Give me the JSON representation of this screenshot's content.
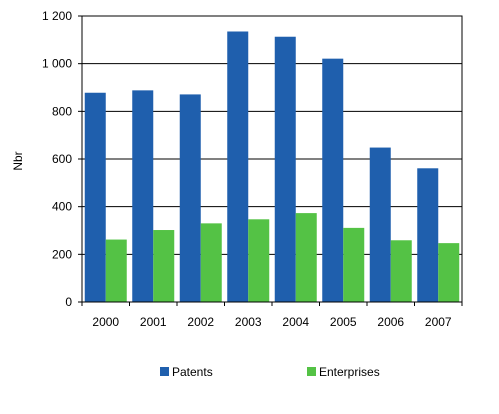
{
  "chart_data": {
    "type": "bar",
    "title": "",
    "xlabel": "",
    "ylabel": "Nbr",
    "ylim": [
      0,
      1200
    ],
    "yticks": [
      0,
      200,
      400,
      600,
      800,
      1000,
      1200
    ],
    "ytick_labels": [
      "0",
      "200",
      "400",
      "600",
      "800",
      "1 000",
      "1 200"
    ],
    "grid": "horizontal",
    "legend": "bottom",
    "categories": [
      "2000",
      "2001",
      "2002",
      "2003",
      "2004",
      "2005",
      "2006",
      "2007"
    ],
    "series": [
      {
        "name": "Patents",
        "color": "#1f5fad",
        "values": [
          878,
          888,
          871,
          1135,
          1113,
          1021,
          648,
          561
        ]
      },
      {
        "name": "Enterprises",
        "color": "#54c245",
        "values": [
          262,
          302,
          330,
          347,
          373,
          311,
          259,
          247
        ]
      }
    ]
  }
}
